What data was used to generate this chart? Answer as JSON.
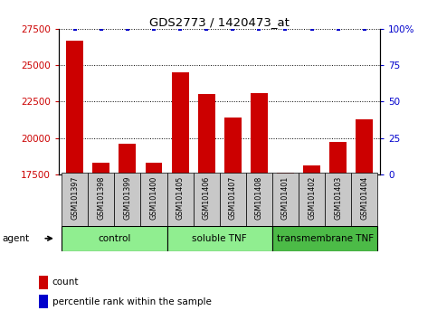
{
  "title": "GDS2773 / 1420473_at",
  "samples": [
    "GSM101397",
    "GSM101398",
    "GSM101399",
    "GSM101400",
    "GSM101405",
    "GSM101406",
    "GSM101407",
    "GSM101408",
    "GSM101401",
    "GSM101402",
    "GSM101403",
    "GSM101404"
  ],
  "counts": [
    26700,
    18300,
    19600,
    18300,
    24500,
    23000,
    21400,
    23100,
    17600,
    18100,
    19700,
    21300
  ],
  "percentile_ranks": [
    100,
    100,
    100,
    100,
    100,
    100,
    100,
    100,
    100,
    100,
    100,
    100
  ],
  "group_ranges": [
    {
      "label": "control",
      "start": 0,
      "end": 4,
      "color": "#90EE90"
    },
    {
      "label": "soluble TNF",
      "start": 4,
      "end": 8,
      "color": "#90EE90"
    },
    {
      "label": "transmembrane TNF",
      "start": 8,
      "end": 12,
      "color": "#4CBB47"
    }
  ],
  "bar_color": "#CC0000",
  "dot_color": "#0000CC",
  "ylim_left": [
    17500,
    27500
  ],
  "yticks_left": [
    17500,
    20000,
    22500,
    25000,
    27500
  ],
  "ylim_right": [
    0,
    100
  ],
  "yticks_right": [
    0,
    25,
    50,
    75,
    100
  ],
  "ylabel_left_color": "#CC0000",
  "ylabel_right_color": "#0000CC",
  "plot_bg": "#FFFFFF",
  "tick_box_color": "#C8C8C8",
  "agent_label": "agent",
  "legend_count_label": "count",
  "legend_pct_label": "percentile rank within the sample"
}
